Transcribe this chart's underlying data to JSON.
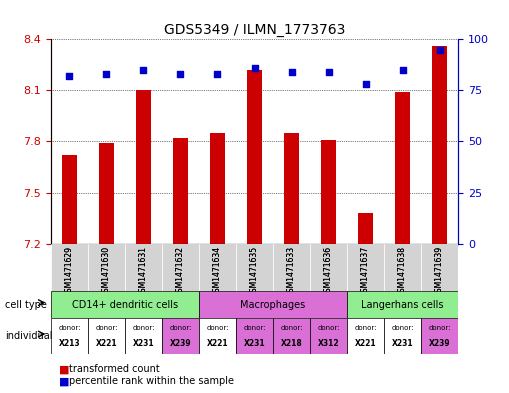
{
  "title": "GDS5349 / ILMN_1773763",
  "samples": [
    "GSM1471629",
    "GSM1471630",
    "GSM1471631",
    "GSM1471632",
    "GSM1471634",
    "GSM1471635",
    "GSM1471633",
    "GSM1471636",
    "GSM1471637",
    "GSM1471638",
    "GSM1471639"
  ],
  "transformed_counts": [
    7.72,
    7.79,
    8.1,
    7.82,
    7.85,
    8.22,
    7.85,
    7.81,
    7.38,
    8.09,
    8.36
  ],
  "percentile_ranks": [
    82,
    83,
    85,
    83,
    83,
    86,
    84,
    84,
    78,
    85,
    95
  ],
  "ylim_left": [
    7.2,
    8.4
  ],
  "ylim_right": [
    0,
    100
  ],
  "yticks_left": [
    7.2,
    7.5,
    7.8,
    8.1,
    8.4
  ],
  "yticks_right": [
    0,
    25,
    50,
    75,
    100
  ],
  "bar_color": "#cc0000",
  "dot_color": "#0000cc",
  "cell_groups": [
    {
      "label": "CD14+ dendritic cells",
      "start": 0,
      "end": 4,
      "color": "#90ee90"
    },
    {
      "label": "Macrophages",
      "start": 4,
      "end": 8,
      "color": "#da70d6"
    },
    {
      "label": "Langerhans cells",
      "start": 8,
      "end": 11,
      "color": "#90ee90"
    }
  ],
  "donors": [
    "X213",
    "X221",
    "X231",
    "X239",
    "X221",
    "X231",
    "X218",
    "X312",
    "X221",
    "X231",
    "X239"
  ],
  "donor_colors": [
    "#ffffff",
    "#ffffff",
    "#ffffff",
    "#da70d6",
    "#ffffff",
    "#da70d6",
    "#da70d6",
    "#da70d6",
    "#ffffff",
    "#ffffff",
    "#da70d6"
  ],
  "legend_items": [
    {
      "label": "transformed count",
      "color": "#cc0000",
      "marker": "s"
    },
    {
      "label": "percentile rank within the sample",
      "color": "#0000cc",
      "marker": "s"
    }
  ],
  "grid_color": "#000000",
  "background_color": "#ffffff",
  "left_axis_color": "#cc0000",
  "right_axis_color": "#0000cc"
}
